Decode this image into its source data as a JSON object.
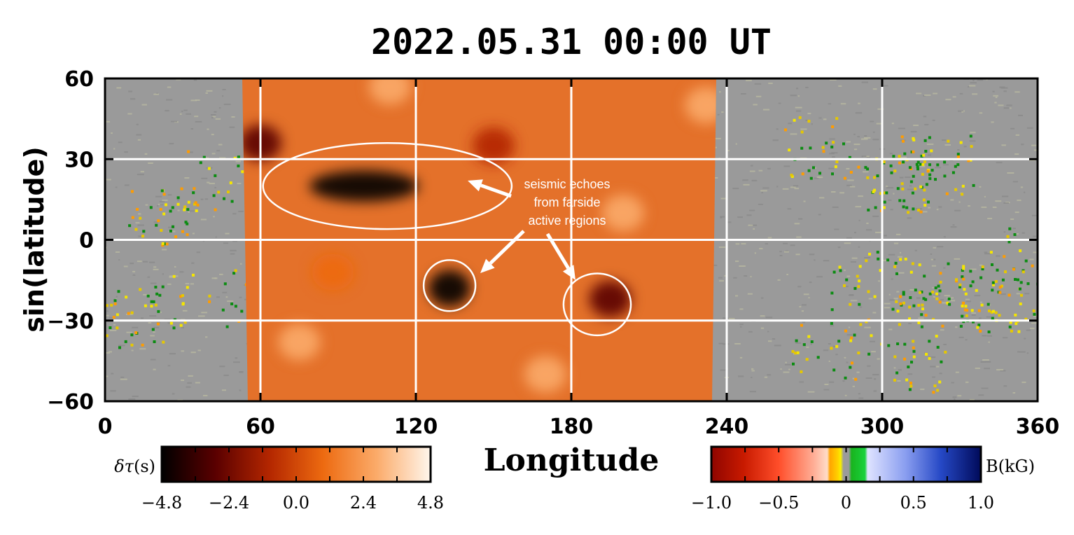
{
  "chart_data": {
    "type": "heatmap",
    "title": "2022.05.31  00:00  UT",
    "xlabel": "Longitude",
    "ylabel": "sin(latitude)",
    "xlim": [
      0,
      360
    ],
    "ylim": [
      -60,
      60
    ],
    "xticks": [
      "0",
      "60",
      "120",
      "180",
      "240",
      "300",
      "360"
    ],
    "xtick_values": [
      0,
      60,
      120,
      180,
      240,
      300,
      360
    ],
    "yticks": [
      "60",
      "30",
      "0",
      "−30",
      "−60"
    ],
    "ytick_values": [
      60,
      30,
      0,
      -30,
      -60
    ],
    "grid": true,
    "farside_region": {
      "lon_start": 53,
      "lon_end": 235
    },
    "farside_features": [
      {
        "lon": 100,
        "lat": 20,
        "strength": -4.8
      },
      {
        "lon": 133,
        "lat": -18,
        "strength": -4.2
      },
      {
        "lon": 195,
        "lat": -22,
        "strength": -3.8
      },
      {
        "lon": 60,
        "lat": 36,
        "strength": -2.6
      },
      {
        "lon": 150,
        "lat": 35,
        "strength": -1.8
      },
      {
        "lon": 75,
        "lat": -38,
        "strength": 3.8
      },
      {
        "lon": 110,
        "lat": 57,
        "strength": 3.2
      },
      {
        "lon": 232,
        "lat": 50,
        "strength": 3.4
      },
      {
        "lon": 200,
        "lat": 10,
        "strength": 2.0
      },
      {
        "lon": 170,
        "lat": -50,
        "strength": 2.0
      },
      {
        "lon": 88,
        "lat": -12,
        "strength": 1.8
      }
    ],
    "ellipses": [
      {
        "lon": 109,
        "lat": 20,
        "rlon": 48,
        "rlat": 16
      },
      {
        "lon": 133,
        "lat": -17,
        "rlon": 10,
        "rlat": 9.5
      },
      {
        "lon": 190,
        "lat": -24,
        "rlon": 13,
        "rlat": 11.5
      }
    ],
    "annotation": {
      "lines": [
        "seismic echoes",
        "from farside",
        "active regions"
      ]
    },
    "colorbars": [
      {
        "label_symbol": "δτ",
        "label_unit": "(s)",
        "ticks": [
          "−4.8",
          "−2.4",
          "0.0",
          "2.4",
          "4.8"
        ],
        "range": [
          -4.8,
          4.8
        ],
        "colors": [
          "#000000",
          "#5a0000",
          "#b32600",
          "#ed6a10",
          "#fbab6a",
          "#fff6ec"
        ]
      },
      {
        "label": "B(kG)",
        "ticks": [
          "−1.0",
          "−0.5",
          "0",
          "0.5",
          "1.0"
        ],
        "range": [
          -1.0,
          1.0
        ]
      }
    ]
  }
}
